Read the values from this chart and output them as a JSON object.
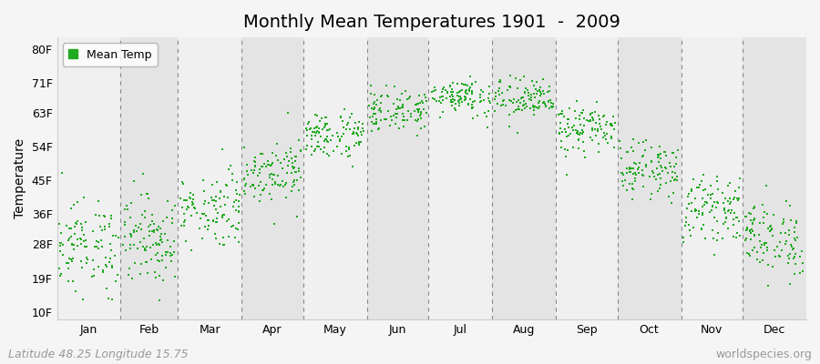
{
  "title": "Monthly Mean Temperatures 1901  -  2009",
  "ylabel": "Temperature",
  "dot_color": "#22aa22",
  "bg_color": "#f5f5f5",
  "plot_bg_light": "#f0f0f0",
  "plot_bg_dark": "#e4e4e4",
  "dashed_line_color": "#888888",
  "legend_label": "Mean Temp",
  "months": [
    "Jan",
    "Feb",
    "Mar",
    "Apr",
    "May",
    "Jun",
    "Jul",
    "Aug",
    "Sep",
    "Oct",
    "Nov",
    "Dec"
  ],
  "month_days": [
    31,
    28,
    31,
    30,
    31,
    30,
    31,
    31,
    30,
    31,
    30,
    31
  ],
  "ytick_values": [
    10,
    19,
    28,
    36,
    45,
    54,
    63,
    71,
    80
  ],
  "ytick_labels": [
    "10F",
    "19F",
    "28F",
    "36F",
    "45F",
    "54F",
    "63F",
    "71F",
    "80F"
  ],
  "ylim": [
    8,
    83
  ],
  "xlim": [
    0,
    365
  ],
  "n_years": 109,
  "monthly_means_F": [
    27.5,
    29.5,
    37.5,
    47.5,
    57.0,
    63.5,
    67.5,
    66.5,
    58.5,
    48.0,
    37.5,
    29.5
  ],
  "monthly_stds_F": [
    6.0,
    6.0,
    5.0,
    4.0,
    3.2,
    2.8,
    2.5,
    2.8,
    3.2,
    3.5,
    4.0,
    5.0
  ],
  "subtitle_left": "Latitude 48.25 Longitude 15.75",
  "subtitle_right": "worldspecies.org",
  "footer_fontsize": 9,
  "title_fontsize": 14,
  "axis_label_fontsize": 10,
  "tick_fontsize": 9,
  "legend_fontsize": 9,
  "dot_size": 4
}
